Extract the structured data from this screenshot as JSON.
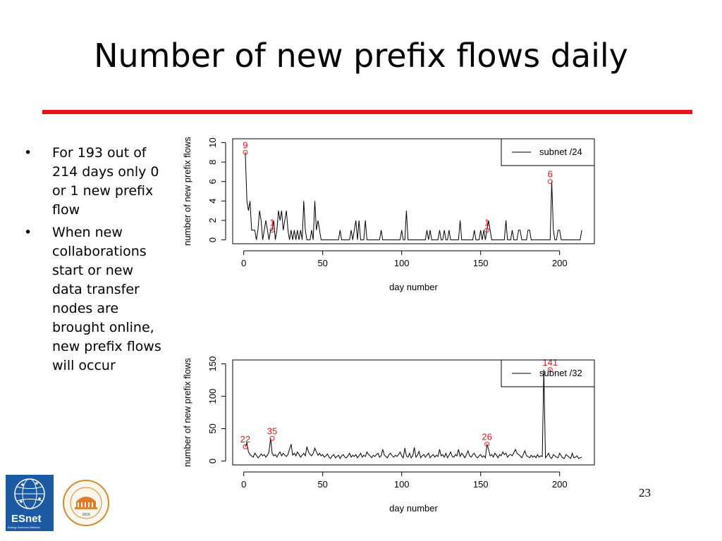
{
  "slide": {
    "title": "Number of new prefix flows daily",
    "bullets": [
      "For 193 out of 214 days only 0 or 1 new prefix flow",
      "When new collaborations start or new data transfer nodes are brought online, new prefix flows will occur"
    ],
    "page_number": "23",
    "colors": {
      "rule": "#e8141b",
      "line": "#000000",
      "marker": "#e8141b",
      "esnet": "#1c5aa4"
    }
  },
  "logos": {
    "esnet": {
      "name": "ESnet",
      "tagline": "Energy Sciences Network"
    },
    "uva": {
      "ring_text": "UNIVERSITY OF VIRGINIA",
      "year": "1819"
    }
  },
  "chart_data": [
    {
      "type": "line",
      "xlabel": "day number",
      "ylabel": "number of new prefix flows",
      "xlim": [
        0,
        214
      ],
      "ylim": [
        0,
        10
      ],
      "xticks": [
        0,
        50,
        100,
        150,
        200
      ],
      "yticks": [
        0,
        2,
        4,
        6,
        8,
        10
      ],
      "legend": {
        "position": "top-right"
      },
      "series": [
        {
          "name": "subnet /24",
          "x": [
            1,
            2,
            3,
            4,
            5,
            6,
            7,
            8,
            9,
            10,
            11,
            12,
            13,
            14,
            15,
            16,
            17,
            18,
            19,
            20,
            21,
            22,
            23,
            24,
            25,
            26,
            27,
            28,
            29,
            30,
            31,
            32,
            33,
            34,
            35,
            36,
            37,
            38,
            39,
            40,
            41,
            42,
            43,
            44,
            45,
            46,
            47,
            48,
            49,
            50,
            51,
            52,
            53,
            54,
            55,
            56,
            57,
            58,
            59,
            60,
            61,
            62,
            63,
            64,
            65,
            66,
            67,
            68,
            69,
            70,
            71,
            72,
            73,
            74,
            75,
            76,
            77,
            78,
            79,
            80,
            81,
            82,
            83,
            84,
            85,
            86,
            87,
            88,
            89,
            90,
            91,
            92,
            93,
            94,
            95,
            96,
            97,
            98,
            99,
            100,
            101,
            102,
            103,
            104,
            105,
            106,
            107,
            108,
            109,
            110,
            111,
            112,
            113,
            114,
            115,
            116,
            117,
            118,
            119,
            120,
            121,
            122,
            123,
            124,
            125,
            126,
            127,
            128,
            129,
            130,
            131,
            132,
            133,
            134,
            135,
            136,
            137,
            138,
            139,
            140,
            141,
            142,
            143,
            144,
            145,
            146,
            147,
            148,
            149,
            150,
            151,
            152,
            153,
            154,
            155,
            156,
            157,
            158,
            159,
            160,
            161,
            162,
            163,
            164,
            165,
            166,
            167,
            168,
            169,
            170,
            171,
            172,
            173,
            174,
            175,
            176,
            177,
            178,
            179,
            180,
            181,
            182,
            183,
            184,
            185,
            186,
            187,
            188,
            189,
            190,
            191,
            192,
            193,
            194,
            195,
            196,
            197,
            198,
            199,
            200,
            201,
            202,
            203,
            204,
            205,
            206,
            207,
            208,
            209,
            210,
            211,
            212,
            213,
            214
          ],
          "y": [
            9,
            4,
            3,
            4,
            1,
            1,
            1,
            0,
            1,
            3,
            2,
            0,
            1,
            2,
            1,
            0,
            1,
            1,
            2,
            0,
            1,
            3,
            2,
            3,
            1,
            2,
            3,
            1,
            0,
            1,
            0,
            1,
            0,
            1,
            0,
            1,
            0,
            4,
            1,
            0,
            0,
            0,
            1,
            0,
            4,
            1,
            2,
            1,
            0,
            0,
            0,
            0,
            0,
            0,
            0,
            0,
            0,
            0,
            0,
            0,
            1,
            0,
            0,
            0,
            0,
            0,
            0,
            1,
            0,
            1,
            2,
            0,
            2,
            0,
            0,
            0,
            2,
            0,
            0,
            0,
            0,
            0,
            0,
            0,
            0,
            0,
            1,
            0,
            0,
            0,
            0,
            0,
            0,
            0,
            0,
            0,
            0,
            0,
            0,
            1,
            0,
            0,
            3,
            0,
            0,
            0,
            0,
            0,
            0,
            0,
            0,
            0,
            0,
            0,
            0,
            1,
            0,
            1,
            0,
            0,
            0,
            0,
            0,
            1,
            0,
            0,
            1,
            0,
            0,
            1,
            0,
            0,
            0,
            0,
            0,
            0,
            2,
            0,
            0,
            0,
            0,
            0,
            0,
            0,
            0,
            1,
            0,
            0,
            0,
            1,
            0,
            1,
            0,
            1,
            2,
            1,
            0,
            0,
            0,
            0,
            0,
            0,
            0,
            0,
            0,
            2,
            0,
            0,
            0,
            1,
            0,
            0,
            0,
            1,
            1,
            0,
            0,
            0,
            0,
            1,
            1,
            0,
            0,
            0,
            0,
            0,
            0,
            0,
            0,
            0,
            0,
            0,
            0,
            0,
            6,
            1,
            0,
            0,
            1,
            1,
            0,
            0,
            0,
            0,
            0,
            0,
            0,
            0,
            0,
            0,
            0,
            0,
            0,
            1
          ]
        }
      ],
      "annotations": [
        {
          "x": 1,
          "y": 9,
          "label": "9"
        },
        {
          "x": 18,
          "y": 1,
          "label": "1"
        },
        {
          "x": 154,
          "y": 1,
          "label": "1"
        },
        {
          "x": 194,
          "y": 6,
          "label": "6"
        }
      ]
    },
    {
      "type": "line",
      "xlabel": "day number",
      "ylabel": "number of new prefix flows",
      "xlim": [
        0,
        214
      ],
      "ylim": [
        0,
        150
      ],
      "xticks": [
        0,
        50,
        100,
        150,
        200
      ],
      "yticks": [
        0,
        50,
        100,
        150
      ],
      "legend": {
        "position": "top-right"
      },
      "series": [
        {
          "name": "subnet /32",
          "x": [
            1,
            2,
            3,
            4,
            5,
            6,
            7,
            8,
            9,
            10,
            11,
            12,
            13,
            14,
            15,
            16,
            17,
            18,
            19,
            20,
            21,
            22,
            23,
            24,
            25,
            26,
            27,
            28,
            29,
            30,
            31,
            32,
            33,
            34,
            35,
            36,
            37,
            38,
            39,
            40,
            41,
            42,
            43,
            44,
            45,
            46,
            47,
            48,
            49,
            50,
            51,
            52,
            53,
            54,
            55,
            56,
            57,
            58,
            59,
            60,
            61,
            62,
            63,
            64,
            65,
            66,
            67,
            68,
            69,
            70,
            71,
            72,
            73,
            74,
            75,
            76,
            77,
            78,
            79,
            80,
            81,
            82,
            83,
            84,
            85,
            86,
            87,
            88,
            89,
            90,
            91,
            92,
            93,
            94,
            95,
            96,
            97,
            98,
            99,
            100,
            101,
            102,
            103,
            104,
            105,
            106,
            107,
            108,
            109,
            110,
            111,
            112,
            113,
            114,
            115,
            116,
            117,
            118,
            119,
            120,
            121,
            122,
            123,
            124,
            125,
            126,
            127,
            128,
            129,
            130,
            131,
            132,
            133,
            134,
            135,
            136,
            137,
            138,
            139,
            140,
            141,
            142,
            143,
            144,
            145,
            146,
            147,
            148,
            149,
            150,
            151,
            152,
            153,
            154,
            155,
            156,
            157,
            158,
            159,
            160,
            161,
            162,
            163,
            164,
            165,
            166,
            167,
            168,
            169,
            170,
            171,
            172,
            173,
            174,
            175,
            176,
            177,
            178,
            179,
            180,
            181,
            182,
            183,
            184,
            185,
            186,
            187,
            188,
            189,
            190,
            191,
            192,
            193,
            194,
            195,
            196,
            197,
            198,
            199,
            200,
            201,
            202,
            203,
            204,
            205,
            206,
            207,
            208,
            209,
            210,
            211,
            212,
            213,
            214
          ],
          "y": [
            22,
            28,
            14,
            10,
            8,
            6,
            12,
            9,
            5,
            7,
            11,
            8,
            10,
            6,
            9,
            14,
            35,
            12,
            8,
            10,
            6,
            11,
            14,
            8,
            12,
            9,
            7,
            10,
            18,
            26,
            9,
            12,
            8,
            14,
            10,
            6,
            9,
            12,
            8,
            22,
            14,
            10,
            8,
            12,
            20,
            14,
            9,
            12,
            8,
            10,
            6,
            8,
            11,
            6,
            4,
            8,
            10,
            5,
            7,
            9,
            4,
            8,
            10,
            6,
            5,
            8,
            12,
            6,
            9,
            7,
            10,
            5,
            8,
            12,
            6,
            9,
            7,
            14,
            10,
            8,
            5,
            9,
            7,
            10,
            12,
            6,
            8,
            18,
            9,
            7,
            5,
            10,
            12,
            8,
            6,
            9,
            7,
            10,
            14,
            8,
            5,
            20,
            8,
            6,
            12,
            5,
            8,
            21,
            6,
            9,
            15,
            5,
            8,
            10,
            6,
            9,
            12,
            5,
            8,
            10,
            6,
            9,
            7,
            18,
            8,
            10,
            6,
            12,
            5,
            9,
            14,
            7,
            6,
            10,
            8,
            18,
            7,
            12,
            9,
            5,
            10,
            16,
            8,
            6,
            10,
            12,
            7,
            5,
            8,
            10,
            6,
            8,
            5,
            26,
            18,
            8,
            10,
            6,
            12,
            9,
            5,
            10,
            8,
            14,
            10,
            12,
            6,
            9,
            10,
            8,
            13,
            18,
            12,
            10,
            8,
            5,
            10,
            16,
            8,
            7,
            5,
            9,
            6,
            8,
            5,
            10,
            6,
            8,
            7,
            141,
            5,
            8,
            12,
            6,
            4,
            10,
            8,
            6,
            5,
            12,
            8,
            5,
            4,
            10,
            8,
            6,
            4,
            12,
            5,
            6,
            8,
            4,
            5,
            6
          ]
        }
      ],
      "annotations": [
        {
          "x": 1,
          "y": 22,
          "label": "22"
        },
        {
          "x": 18,
          "y": 35,
          "label": "35"
        },
        {
          "x": 154,
          "y": 26,
          "label": "26"
        },
        {
          "x": 194,
          "y": 141,
          "label": "141"
        }
      ]
    }
  ]
}
